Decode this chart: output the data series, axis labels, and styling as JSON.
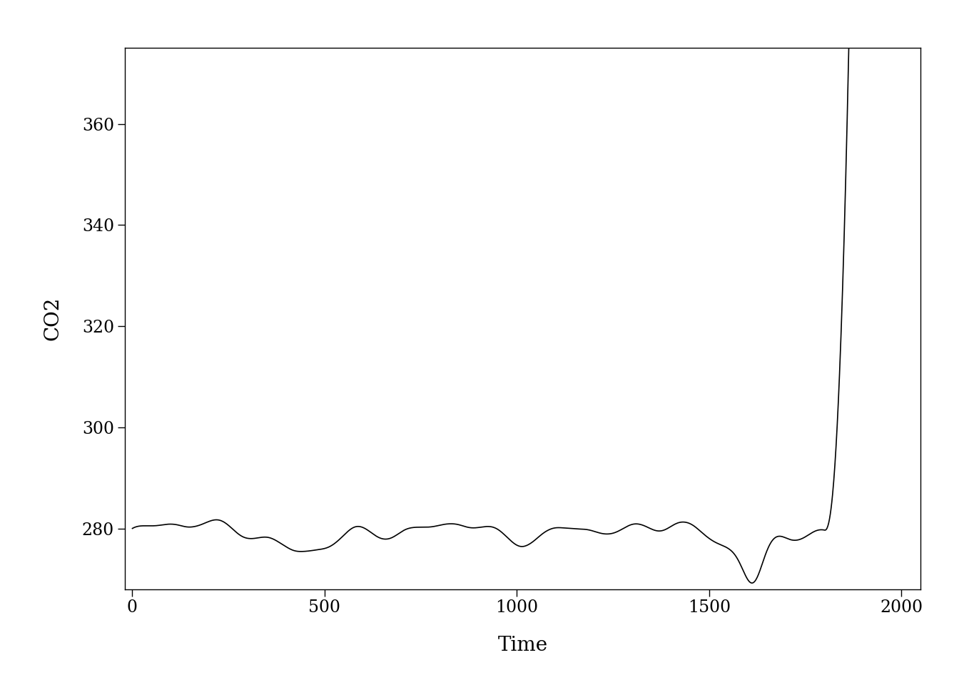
{
  "title": "",
  "xlabel": "Time",
  "ylabel": "CO2",
  "xlim": [
    -20,
    2050
  ],
  "ylim": [
    268,
    375
  ],
  "xticks": [
    0,
    500,
    1000,
    1500,
    2000
  ],
  "yticks": [
    280,
    300,
    320,
    340,
    360
  ],
  "line_color": "#000000",
  "line_width": 1.2,
  "bg_color": "#ffffff",
  "font_family": "serif",
  "axis_label_fontsize": 20,
  "tick_fontsize": 17
}
